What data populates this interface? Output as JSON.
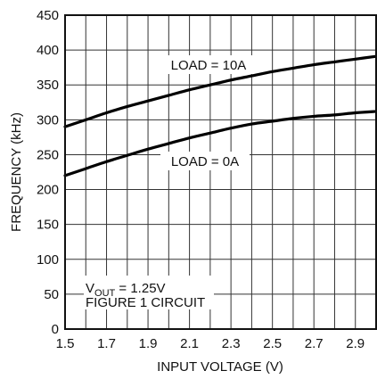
{
  "chart_data": {
    "type": "line",
    "xlabel": "INPUT VOLTAGE (V)",
    "ylabel": "FREQUENCY (kHz)",
    "xlim": [
      1.5,
      3.0
    ],
    "ylim": [
      0,
      450
    ],
    "grid": true,
    "xticks": [
      "1.5",
      "1.7",
      "1.9",
      "2.1",
      "2.3",
      "2.5",
      "2.7",
      "2.9"
    ],
    "xtick_values": [
      1.5,
      1.7,
      1.9,
      2.1,
      2.3,
      2.5,
      2.7,
      2.9
    ],
    "yticks": [
      "0",
      "50",
      "100",
      "150",
      "200",
      "250",
      "300",
      "350",
      "400",
      "450"
    ],
    "ytick_values": [
      0,
      50,
      100,
      150,
      200,
      250,
      300,
      350,
      400,
      450
    ],
    "x": [
      1.5,
      1.6,
      1.7,
      1.8,
      1.9,
      2.0,
      2.1,
      2.2,
      2.3,
      2.4,
      2.5,
      2.6,
      2.7,
      2.8,
      2.9,
      3.0
    ],
    "series": [
      {
        "name": "LOAD = 10A",
        "values": [
          290,
          300,
          310,
          319,
          327,
          335,
          343,
          350,
          357,
          363,
          369,
          374,
          379,
          383,
          387,
          391
        ]
      },
      {
        "name": "LOAD = 0A",
        "values": [
          220,
          230,
          240,
          249,
          258,
          266,
          274,
          281,
          288,
          294,
          298,
          302,
          305,
          307,
          310,
          312
        ]
      }
    ],
    "annotations": {
      "vout_prefix": "V",
      "vout_sub": "OUT",
      "vout_suffix": " = 1.25V",
      "circuit": "FIGURE 1 CIRCUIT"
    }
  }
}
